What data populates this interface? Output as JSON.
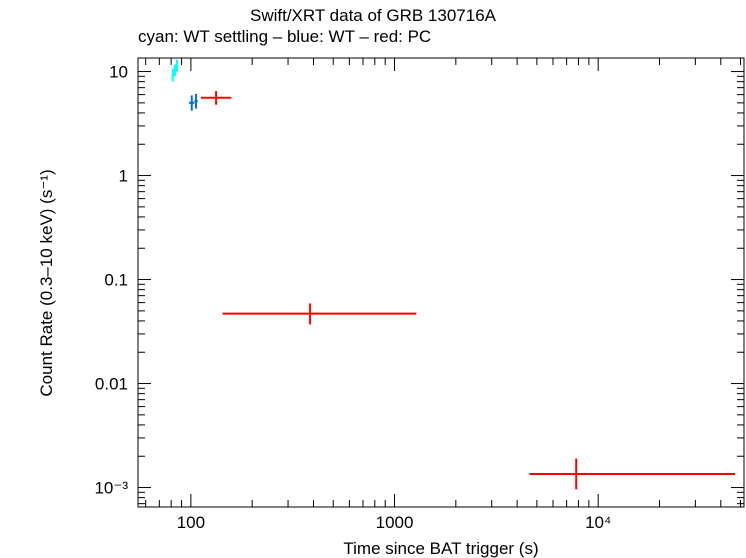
{
  "chart_data": {
    "type": "scatter",
    "title": "Swift/XRT data of GRB 130716A",
    "subtitle": "cyan: WT settling – blue: WT – red: PC",
    "xlabel": "Time since BAT trigger (s)",
    "ylabel": "Count Rate (0.3–10 keV) (s⁻¹)",
    "x_scale": "log",
    "y_scale": "log",
    "xlim": [
      55,
      52000
    ],
    "ylim": [
      0.00065,
      13.5
    ],
    "x_ticks": [
      {
        "value": 100,
        "label": "100"
      },
      {
        "value": 1000,
        "label": "1000"
      },
      {
        "value": 10000,
        "label": "10⁴"
      }
    ],
    "y_ticks": [
      {
        "value": 10,
        "label": "10"
      },
      {
        "value": 1,
        "label": "1"
      },
      {
        "value": 0.1,
        "label": "0.1"
      },
      {
        "value": 0.01,
        "label": "0.01"
      },
      {
        "value": 0.001,
        "label": "10⁻³"
      }
    ],
    "grid": false,
    "series": [
      {
        "name": "WT settling",
        "color": "#00ffff",
        "points": [
          {
            "x": 81.5,
            "xlo": 80.5,
            "xhi": 82.5,
            "y": 9.3,
            "ylo": 8.0,
            "yhi": 10.7
          },
          {
            "x": 83.5,
            "xlo": 82.5,
            "xhi": 84.5,
            "y": 10.3,
            "ylo": 9.0,
            "yhi": 11.7
          },
          {
            "x": 85.5,
            "xlo": 84.5,
            "xhi": 86.5,
            "y": 11.5,
            "ylo": 10.0,
            "yhi": 13.0
          }
        ]
      },
      {
        "name": "WT",
        "color": "#0070e0",
        "points": [
          {
            "x": 101,
            "xlo": 98,
            "xhi": 104,
            "y": 5.0,
            "ylo": 4.2,
            "yhi": 5.9
          },
          {
            "x": 106,
            "xlo": 104,
            "xhi": 108,
            "y": 5.2,
            "ylo": 4.4,
            "yhi": 6.1
          }
        ]
      },
      {
        "name": "PC",
        "color": "#ff0000",
        "points": [
          {
            "x": 133,
            "xlo": 112,
            "xhi": 158,
            "y": 5.6,
            "ylo": 4.8,
            "yhi": 6.5
          },
          {
            "x": 385,
            "xlo": 143,
            "xhi": 1280,
            "y": 0.047,
            "ylo": 0.037,
            "yhi": 0.059
          },
          {
            "x": 7800,
            "xlo": 4600,
            "xhi": 47000,
            "y": 0.00135,
            "ylo": 0.00096,
            "yhi": 0.0019
          }
        ]
      }
    ]
  }
}
